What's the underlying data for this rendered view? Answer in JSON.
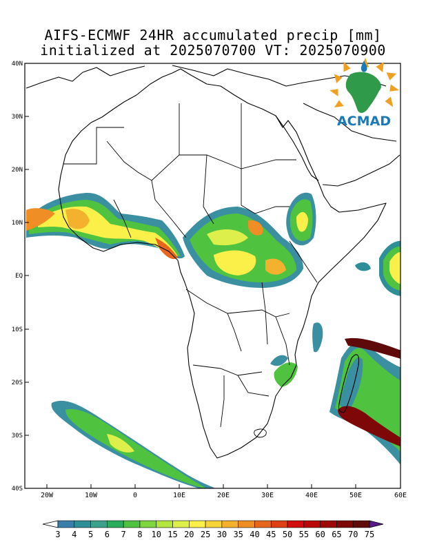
{
  "title_line1": "AIFS-ECMWF 24HR accumulated precip [mm]",
  "title_line2": "initialized at 2025070700 VT: 2025070900",
  "logo": {
    "text": "ACMAD",
    "icon": "africa-sun-logo-icon"
  },
  "map": {
    "lon_range": [
      -25,
      60
    ],
    "lat_range": [
      -40,
      40
    ],
    "lat_labels": [
      "40N",
      "30N",
      "20N",
      "10N",
      "EQ",
      "10S",
      "20S",
      "30S",
      "40S"
    ],
    "lon_labels": [
      "20W",
      "10W",
      "0",
      "10E",
      "20E",
      "30E",
      "40E",
      "50E",
      "60E"
    ]
  },
  "colorbar": {
    "labels": [
      "3",
      "4",
      "5",
      "6",
      "7",
      "8",
      "10",
      "15",
      "20",
      "25",
      "30",
      "35",
      "40",
      "45",
      "50",
      "55",
      "60",
      "65",
      "70",
      "75"
    ],
    "colors": [
      "#3a7fa8",
      "#2f8f98",
      "#3aa28a",
      "#2bab5c",
      "#4fc240",
      "#7dd640",
      "#b3e63f",
      "#dcef4a",
      "#fbf04a",
      "#f7d33a",
      "#f3b12e",
      "#ee8e24",
      "#e6671b",
      "#e03e14",
      "#d10d0d",
      "#b80808",
      "#9c0707",
      "#7e0808",
      "#5e0a0a"
    ],
    "low_arrow_color": "#ffffff",
    "high_arrow_color": "#5a1a8a"
  }
}
